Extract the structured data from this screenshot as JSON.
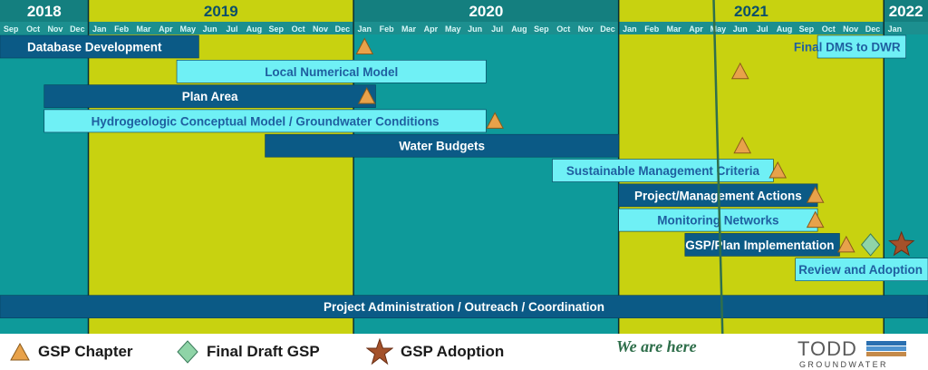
{
  "colors": {
    "teal": "#0e9a9a",
    "lime": "#c8d210",
    "year_band": "#147f7f",
    "month_band": "#1c8f8f",
    "dark_bar": "#0b5a86",
    "light_bar": "#6ff0f5",
    "triangle": "#e8a24a",
    "diamond": "#8fd4a7",
    "star": "#a4512a"
  },
  "chart_data": {
    "type": "gantt",
    "years": [
      {
        "label": "2018",
        "start_month": 0,
        "months": 4
      },
      {
        "label": "2019",
        "start_month": 4,
        "months": 12
      },
      {
        "label": "2020",
        "start_month": 16,
        "months": 12
      },
      {
        "label": "2021",
        "start_month": 28,
        "months": 12
      },
      {
        "label": "2022",
        "start_month": 40,
        "months": 1
      }
    ],
    "months": [
      "Sep",
      "Oct",
      "Nov",
      "Dec",
      "Jan",
      "Feb",
      "Mar",
      "Apr",
      "May",
      "Jun",
      "Jul",
      "Aug",
      "Sep",
      "Oct",
      "Nov",
      "Dec",
      "Jan",
      "Feb",
      "Mar",
      "Apr",
      "May",
      "Jun",
      "Jul",
      "Aug",
      "Sep",
      "Oct",
      "Nov",
      "Dec",
      "Jan",
      "Feb",
      "Mar",
      "Apr",
      "May",
      "Jun",
      "Jul",
      "Aug",
      "Sep",
      "Oct",
      "Nov",
      "Dec",
      "Jan"
    ],
    "tasks": [
      {
        "label": "Database Development",
        "start": 0,
        "end": 9,
        "style": "dark",
        "align": "left"
      },
      {
        "label": "Final DMS to DWR",
        "start": 37,
        "end": 41,
        "style": "light",
        "align": "right"
      },
      {
        "label": "Local Numerical Model",
        "start": 8,
        "end": 22,
        "style": "light",
        "align": "center"
      },
      {
        "label": "Plan Area",
        "start": 2,
        "end": 17,
        "style": "dark",
        "align": "center"
      },
      {
        "label": "Hydrogeologic Conceptual Model / Groundwater Conditions",
        "start": 2,
        "end": 22,
        "style": "light",
        "align": "center"
      },
      {
        "label": "Water Budgets",
        "start": 12,
        "end": 28,
        "style": "dark",
        "align": "center"
      },
      {
        "label": "Sustainable Management Criteria",
        "start": 25,
        "end": 35,
        "style": "light",
        "align": "center"
      },
      {
        "label": "Project/Management Actions",
        "start": 28,
        "end": 37,
        "style": "dark",
        "align": "center"
      },
      {
        "label": "Monitoring Networks",
        "start": 28,
        "end": 37,
        "style": "light",
        "align": "center"
      },
      {
        "label": "GSP/Plan Implementation",
        "start": 31,
        "end": 38,
        "style": "dark",
        "align": "right"
      },
      {
        "label": "Review and Adoption",
        "start": 36,
        "end": 42,
        "style": "light",
        "align": "right"
      },
      {
        "label": "Project Administration / Outreach / Coordination",
        "start": 0,
        "end": 42,
        "style": "dark",
        "align": "center"
      }
    ],
    "milestones": [
      {
        "type": "triangle",
        "row": 0,
        "month": 16.5
      },
      {
        "type": "triangle",
        "row": 1,
        "month": 33.5
      },
      {
        "type": "triangle",
        "row": 2,
        "month": 16.6
      },
      {
        "type": "triangle",
        "row": 3,
        "month": 22.4
      },
      {
        "type": "triangle",
        "row": 4,
        "month": 33.6
      },
      {
        "type": "triangle",
        "row": 5,
        "month": 35.2
      },
      {
        "type": "triangle",
        "row": 6,
        "month": 36.9
      },
      {
        "type": "triangle",
        "row": 7,
        "month": 36.9
      },
      {
        "type": "triangle",
        "row": 8,
        "month": 38.3
      },
      {
        "type": "diamond",
        "row": 8,
        "month": 39.4
      },
      {
        "type": "star",
        "row": 8,
        "month": 40.8
      }
    ],
    "today_marker": {
      "label": "We are here",
      "month_top": 32.3,
      "month_bottom": 32.7
    },
    "legend": [
      {
        "type": "triangle",
        "label": "GSP Chapter"
      },
      {
        "type": "diamond",
        "label": "Final Draft GSP"
      },
      {
        "type": "star",
        "label": "GSP Adoption"
      }
    ]
  },
  "logo": {
    "name": "TODD",
    "sub": "GROUNDWATER"
  }
}
